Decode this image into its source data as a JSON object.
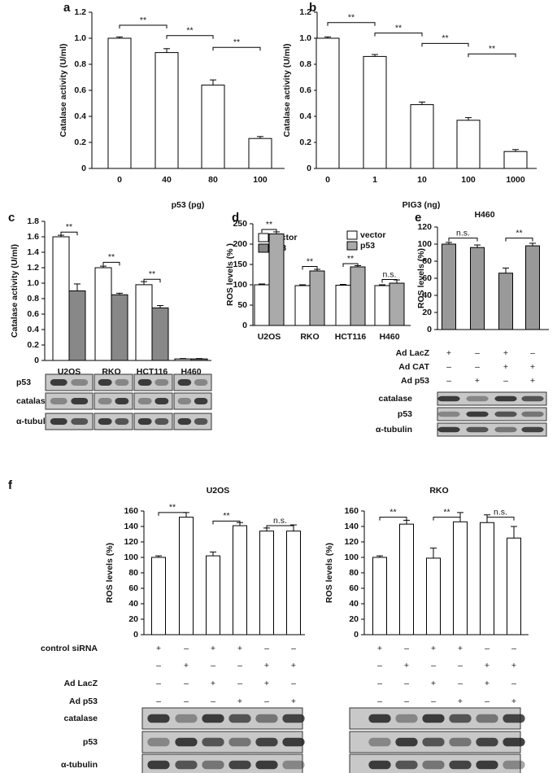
{
  "chart_data": [
    {
      "type": "bar",
      "label": "a",
      "ylabel": "Catalase activity (U/ml)",
      "xlabel": "p53 (pg)",
      "categories": [
        "0",
        "40",
        "80",
        "100"
      ],
      "values": [
        1.0,
        0.89,
        0.64,
        0.23
      ],
      "errors": [
        0.01,
        0.03,
        0.04,
        0.015
      ],
      "color": "#ffffff",
      "ylim": [
        0,
        1.2
      ],
      "yticks": [
        0,
        0.2,
        0.4,
        0.6,
        0.8,
        {
          "value": 1,
          "label": "1.0"
        },
        1.2
      ],
      "annotations": [
        "**",
        "**",
        "**"
      ]
    },
    {
      "type": "bar",
      "label": "b",
      "ylabel": "Catalase activity (U/ml)",
      "xlabel": "PIG3 (ng)",
      "categories": [
        "0",
        "1",
        "10",
        "100",
        "1000"
      ],
      "values": [
        1.0,
        0.86,
        0.49,
        0.37,
        0.13
      ],
      "errors": [
        0.01,
        0.015,
        0.02,
        0.02,
        0.015
      ],
      "color": "#ffffff",
      "ylim": [
        0,
        1.2
      ],
      "yticks": [
        0,
        0.2,
        0.4,
        0.6,
        0.8,
        {
          "value": 1,
          "label": "1.0"
        },
        1.2
      ],
      "annotations": [
        "**",
        "**",
        "**",
        "**"
      ]
    },
    {
      "type": "grouped_bar",
      "label": "c",
      "ylabel": "Catalase activity (U/ml)",
      "categories": [
        "U2OS",
        "RKO",
        "HCT116",
        "H460"
      ],
      "series": [
        {
          "name": "vector",
          "color": "#ffffff",
          "values": [
            1.6,
            1.2,
            0.98,
            0.02
          ],
          "errors": [
            0.02,
            0.02,
            0.04,
            0.005
          ]
        },
        {
          "name": "p53",
          "color": "#888888",
          "values": [
            0.9,
            0.85,
            0.68,
            0.02
          ],
          "errors": [
            0.09,
            0.02,
            0.03,
            0.005
          ]
        }
      ],
      "ylim": [
        0,
        1.8
      ],
      "yticks": [
        0,
        0.2,
        0.4,
        0.6,
        0.8,
        {
          "value": 1,
          "label": "1.0"
        },
        1.2,
        1.4,
        1.6,
        1.8
      ],
      "annotations": [
        "**",
        "**",
        "**"
      ],
      "blots": [
        "p53",
        "catalase",
        "α-tubulin"
      ]
    },
    {
      "type": "grouped_bar",
      "label": "d",
      "ylabel": "ROS levels (% )",
      "categories": [
        "U2OS",
        "RKO",
        "HCT116",
        "H460"
      ],
      "series": [
        {
          "name": "vector",
          "color": "#ffffff",
          "values": [
            100,
            98,
            99,
            98
          ],
          "errors": [
            2,
            2,
            2,
            2
          ]
        },
        {
          "name": "p53",
          "color": "#aaaaaa",
          "values": [
            225,
            134,
            144,
            104
          ],
          "errors": [
            5,
            4,
            3,
            8
          ]
        }
      ],
      "ylim": [
        0,
        250
      ],
      "yticks": [
        0,
        50,
        100,
        150,
        200,
        250
      ],
      "annotations": [
        "**",
        "**",
        "**",
        "n.s."
      ]
    },
    {
      "type": "bar",
      "label": "e",
      "title": "H460",
      "ylabel": "ROS levels (%)",
      "values": [
        100,
        96,
        66,
        98
      ],
      "errors": [
        2,
        3,
        6,
        3
      ],
      "color": "#999999",
      "ylim": [
        0,
        120
      ],
      "yticks": [
        0,
        20,
        40,
        60,
        80,
        100,
        120
      ],
      "annotations": [
        "n.s.",
        "**"
      ],
      "conditions": [
        {
          "label": "Ad LacZ",
          "values": [
            "+",
            "–",
            "+",
            "–"
          ]
        },
        {
          "label": "Ad CAT",
          "values": [
            "–",
            "–",
            "+",
            "+"
          ]
        },
        {
          "label": "Ad p53",
          "values": [
            "–",
            "+",
            "–",
            "+"
          ]
        }
      ],
      "blots": [
        "catalase",
        "p53",
        "α-tubulin"
      ]
    },
    {
      "type": "bar",
      "label": "f",
      "title": "U2OS",
      "ylabel": "ROS levels (%)",
      "values": [
        100,
        152,
        102,
        141,
        134,
        134
      ],
      "errors": [
        2,
        6,
        5,
        4,
        4,
        8
      ],
      "color": "#ffffff",
      "ylim": [
        0,
        160
      ],
      "yticks": [
        0,
        20,
        40,
        60,
        80,
        100,
        120,
        140,
        160
      ],
      "annotations": [
        "**",
        "**",
        "n.s."
      ],
      "conditions": [
        {
          "label": "control siRNA",
          "values": [
            "+",
            "–",
            "+",
            "+",
            "–",
            "–"
          ]
        },
        {
          "label": null,
          "values": [
            "–",
            "+",
            "–",
            "–",
            "+",
            "+"
          ]
        },
        {
          "label": "Ad LacZ",
          "values": [
            "–",
            "–",
            "+",
            "–",
            "+",
            "–"
          ]
        },
        {
          "label": "Ad p53",
          "values": [
            "–",
            "–",
            "–",
            "+",
            "–",
            "+"
          ]
        }
      ],
      "blots": [
        "catalase",
        "p53",
        "α-tubulin"
      ]
    },
    {
      "type": "bar",
      "title": "RKO",
      "ylabel": "ROS levels (%)",
      "values": [
        100,
        143,
        99,
        146,
        145,
        125
      ],
      "errors": [
        2,
        5,
        13,
        12,
        10,
        15
      ],
      "color": "#ffffff",
      "ylim": [
        0,
        160
      ],
      "yticks": [
        0,
        20,
        40,
        60,
        80,
        100,
        120,
        140,
        160
      ],
      "annotations": [
        "**",
        "**",
        "n.s."
      ],
      "conditions": [
        {
          "label": null,
          "values": [
            "+",
            "–",
            "+",
            "+",
            "–",
            "–"
          ]
        },
        {
          "label": null,
          "values": [
            "–",
            "+",
            "–",
            "–",
            "+",
            "+"
          ]
        },
        {
          "label": null,
          "values": [
            "–",
            "–",
            "+",
            "–",
            "+",
            "–"
          ]
        },
        {
          "label": null,
          "values": [
            "–",
            "–",
            "–",
            "+",
            "–",
            "+"
          ]
        }
      ]
    }
  ]
}
